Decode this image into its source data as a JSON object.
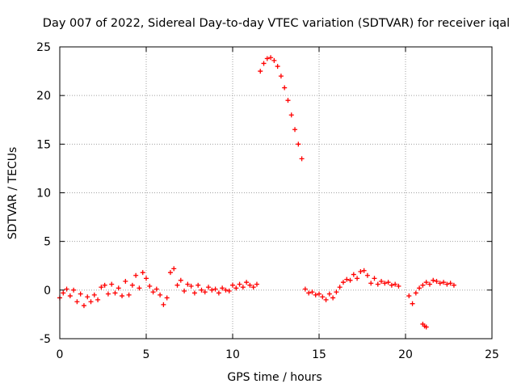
{
  "chart_data": {
    "type": "scatter",
    "title": "Day 007 of 2022, Sidereal Day-to-day VTEC variation (SDTVAR) for receiver iqal",
    "xlabel": "GPS time / hours",
    "ylabel": "SDTVAR / TECUs",
    "xlim": [
      0,
      25
    ],
    "ylim": [
      -5,
      25
    ],
    "xticks": [
      0,
      5,
      10,
      15,
      20,
      25
    ],
    "yticks": [
      -5,
      0,
      5,
      10,
      15,
      20,
      25
    ],
    "xtick_labels": [
      "0",
      "5",
      "10",
      "15",
      "20",
      "25"
    ],
    "ytick_labels": [
      "-5",
      "0",
      "5",
      "10",
      "15",
      "20",
      "25"
    ],
    "grid": true,
    "marker": "plus",
    "color": "#ff0000",
    "series": [
      {
        "name": "SDTVAR",
        "x": [
          0.0,
          0.2,
          0.4,
          0.6,
          0.8,
          1.0,
          1.2,
          1.4,
          1.6,
          1.8,
          2.0,
          2.2,
          2.4,
          2.6,
          2.8,
          3.0,
          3.2,
          3.4,
          3.6,
          3.8,
          4.0,
          4.2,
          4.4,
          4.6,
          4.8,
          5.0,
          5.2,
          5.4,
          5.6,
          5.8,
          6.0,
          6.2,
          6.4,
          6.6,
          6.8,
          7.0,
          7.2,
          7.4,
          7.6,
          7.8,
          8.0,
          8.2,
          8.4,
          8.6,
          8.8,
          9.0,
          9.2,
          9.4,
          9.6,
          9.8,
          10.0,
          10.2,
          10.4,
          10.6,
          10.8,
          11.0,
          11.2,
          11.4,
          11.6,
          11.8,
          12.0,
          12.2,
          12.4,
          12.6,
          12.8,
          13.0,
          13.2,
          13.4,
          13.6,
          13.8,
          14.0,
          14.2,
          14.4,
          14.6,
          14.8,
          15.0,
          15.2,
          15.4,
          15.6,
          15.8,
          16.0,
          16.2,
          16.4,
          16.6,
          16.8,
          17.0,
          17.2,
          17.4,
          17.6,
          17.8,
          18.0,
          18.2,
          18.4,
          18.6,
          18.8,
          19.0,
          19.2,
          19.4,
          19.6,
          20.2,
          20.4,
          20.6,
          20.8,
          21.0,
          21.2,
          21.4,
          21.6,
          21.8,
          22.0,
          22.2,
          22.4,
          22.6,
          22.8,
          21.0,
          21.1,
          21.2
        ],
        "y": [
          -0.8,
          -0.3,
          0.1,
          -0.6,
          0.0,
          -1.2,
          -0.4,
          -1.6,
          -0.7,
          -1.2,
          -0.5,
          -1.0,
          0.3,
          0.5,
          -0.4,
          0.6,
          -0.3,
          0.2,
          -0.6,
          0.9,
          -0.5,
          0.5,
          1.5,
          0.2,
          1.8,
          1.2,
          0.4,
          -0.2,
          0.1,
          -0.5,
          -1.5,
          -0.8,
          1.8,
          2.2,
          0.5,
          1.0,
          -0.1,
          0.6,
          0.4,
          -0.3,
          0.5,
          0.0,
          -0.2,
          0.3,
          0.0,
          0.1,
          -0.3,
          0.2,
          0.0,
          -0.1,
          0.5,
          0.2,
          0.6,
          0.3,
          0.8,
          0.5,
          0.3,
          0.6,
          22.5,
          23.3,
          23.8,
          23.9,
          23.6,
          23.0,
          22.0,
          20.8,
          19.5,
          18.0,
          16.5,
          15.0,
          13.5,
          0.1,
          -0.3,
          -0.2,
          -0.5,
          -0.4,
          -0.7,
          -1.0,
          -0.4,
          -0.8,
          -0.2,
          0.3,
          0.8,
          1.1,
          1.0,
          1.6,
          1.2,
          1.9,
          2.0,
          1.5,
          0.7,
          1.2,
          0.6,
          0.9,
          0.7,
          0.8,
          0.5,
          0.6,
          0.4,
          -0.6,
          -1.4,
          -0.3,
          0.2,
          0.5,
          0.8,
          0.6,
          1.0,
          0.9,
          0.7,
          0.8,
          0.6,
          0.7,
          0.5,
          -3.5,
          -3.7,
          -3.8
        ]
      }
    ]
  }
}
